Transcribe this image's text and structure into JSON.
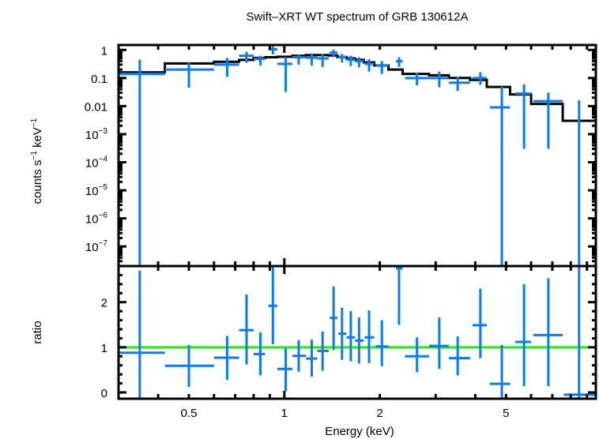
{
  "chart_data": {
    "type": "scatter",
    "title": "Swift–XRT WT spectrum of GRB 130612A",
    "xlabel": "Energy (keV)",
    "xscale": "log",
    "xlim": [
      0.3,
      9.6
    ],
    "x_tick_labels": [
      "0.5",
      "1",
      "2",
      "5"
    ],
    "x_ticks": [
      0.5,
      1,
      2,
      5
    ],
    "colors": {
      "data": "#0a7cf0",
      "model": "#000000",
      "ratio_line": "#22ee11",
      "axes": "#000000"
    },
    "panels": [
      {
        "name": "spectrum",
        "ylabel": "counts s⁻¹ keV⁻¹",
        "ylabel_parts": {
          "a": "counts s",
          "b": "−1",
          "c": " keV",
          "d": "−1"
        },
        "yscale": "log",
        "ylim": [
          2e-08,
          1.5
        ],
        "y_ticks": [
          {
            "value": 1,
            "base": "1",
            "exp": ""
          },
          {
            "value": 0.1,
            "base": "0.1",
            "exp": ""
          },
          {
            "value": 0.01,
            "base": "0.01",
            "exp": ""
          },
          {
            "value": 0.001,
            "base": "10",
            "exp": "−3"
          },
          {
            "value": 0.0001,
            "base": "10",
            "exp": "−4"
          },
          {
            "value": 1e-05,
            "base": "10",
            "exp": "−5"
          },
          {
            "value": 1e-06,
            "base": "10",
            "exp": "−6"
          },
          {
            "value": 1e-07,
            "base": "10",
            "exp": "−7"
          }
        ],
        "series": [
          {
            "name": "data",
            "points": [
              {
                "x": 0.35,
                "xlo": 0.3,
                "xhi": 0.42,
                "y": 0.14,
                "ylo": 2e-08,
                "yhi": 0.45
              },
              {
                "x": 0.5,
                "xlo": 0.42,
                "xhi": 0.6,
                "y": 0.2,
                "ylo": 0.045,
                "yhi": 0.35
              },
              {
                "x": 0.66,
                "xlo": 0.6,
                "xhi": 0.72,
                "y": 0.3,
                "ylo": 0.11,
                "yhi": 0.52
              },
              {
                "x": 0.76,
                "xlo": 0.72,
                "xhi": 0.8,
                "y": 0.62,
                "ylo": 0.35,
                "yhi": 0.85
              },
              {
                "x": 0.84,
                "xlo": 0.8,
                "xhi": 0.87,
                "y": 0.48,
                "ylo": 0.28,
                "yhi": 0.62
              },
              {
                "x": 0.92,
                "xlo": 0.89,
                "xhi": 0.95,
                "y": 1.05,
                "ylo": 0.7,
                "yhi": 1.35
              },
              {
                "x": 1.01,
                "xlo": 0.95,
                "xhi": 1.06,
                "y": 0.32,
                "ylo": 0.032,
                "yhi": 0.55
              },
              {
                "x": 1.11,
                "xlo": 1.06,
                "xhi": 1.17,
                "y": 0.55,
                "ylo": 0.3,
                "yhi": 0.7
              },
              {
                "x": 1.22,
                "xlo": 1.17,
                "xhi": 1.27,
                "y": 0.53,
                "ylo": 0.28,
                "yhi": 0.75
              },
              {
                "x": 1.32,
                "xlo": 1.27,
                "xhi": 1.38,
                "y": 0.5,
                "ylo": 0.25,
                "yhi": 0.72
              },
              {
                "x": 1.43,
                "xlo": 1.39,
                "xhi": 1.47,
                "y": 0.8,
                "ylo": 0.55,
                "yhi": 1.05
              },
              {
                "x": 1.52,
                "xlo": 1.48,
                "xhi": 1.57,
                "y": 0.55,
                "ylo": 0.36,
                "yhi": 0.72
              },
              {
                "x": 1.62,
                "xlo": 1.57,
                "xhi": 1.67,
                "y": 0.45,
                "ylo": 0.27,
                "yhi": 0.62
              },
              {
                "x": 1.72,
                "xlo": 1.67,
                "xhi": 1.78,
                "y": 0.4,
                "ylo": 0.24,
                "yhi": 0.55
              },
              {
                "x": 1.85,
                "xlo": 1.79,
                "xhi": 1.92,
                "y": 0.32,
                "ylo": 0.17,
                "yhi": 0.47
              },
              {
                "x": 2.03,
                "xlo": 1.94,
                "xhi": 2.13,
                "y": 0.28,
                "ylo": 0.14,
                "yhi": 0.4
              },
              {
                "x": 2.3,
                "xlo": 2.25,
                "xhi": 2.36,
                "y": 0.4,
                "ylo": 0.25,
                "yhi": 0.55
              },
              {
                "x": 2.62,
                "xlo": 2.4,
                "xhi": 2.86,
                "y": 0.1,
                "ylo": 0.055,
                "yhi": 0.155
              },
              {
                "x": 3.08,
                "xlo": 2.86,
                "xhi": 3.3,
                "y": 0.1,
                "ylo": 0.047,
                "yhi": 0.17
              },
              {
                "x": 3.52,
                "xlo": 3.3,
                "xhi": 3.85,
                "y": 0.068,
                "ylo": 0.035,
                "yhi": 0.11
              },
              {
                "x": 4.15,
                "xlo": 3.92,
                "xhi": 4.35,
                "y": 0.1,
                "ylo": 0.057,
                "yhi": 0.16
              },
              {
                "x": 4.85,
                "xlo": 4.45,
                "xhi": 5.15,
                "y": 0.009,
                "ylo": 2e-08,
                "yhi": 0.05
              },
              {
                "x": 5.7,
                "xlo": 5.35,
                "xhi": 6.0,
                "y": 0.028,
                "ylo": 0.0003,
                "yhi": 0.06
              },
              {
                "x": 6.8,
                "xlo": 6.1,
                "xhi": 7.55,
                "y": 0.015,
                "ylo": 0.0003,
                "yhi": 0.03
              },
              {
                "x": 8.5,
                "xlo": 7.6,
                "xhi": 9.6,
                "y": 2e-08,
                "ylo": 2e-08,
                "yhi": 0.016
              }
            ]
          },
          {
            "name": "model",
            "step_edges": [
              0.3,
              0.42,
              0.6,
              0.72,
              0.8,
              0.87,
              0.95,
              1.06,
              1.17,
              1.27,
              1.38,
              1.47,
              1.57,
              1.67,
              1.78,
              1.92,
              2.13,
              2.36,
              2.86,
              3.3,
              3.85,
              4.35,
              5.15,
              6.0,
              7.55,
              9.6
            ],
            "step_values": [
              0.16,
              0.33,
              0.38,
              0.44,
              0.52,
              0.55,
              0.57,
              0.62,
              0.66,
              0.66,
              0.64,
              0.56,
              0.5,
              0.44,
              0.36,
              0.28,
              0.2,
              0.14,
              0.125,
              0.1,
              0.085,
              0.048,
              0.026,
              0.012,
              0.003
            ]
          }
        ]
      },
      {
        "name": "ratio",
        "ylabel": "ratio",
        "yscale": "linear",
        "ylim": [
          -0.14,
          2.8
        ],
        "y_ticks": [
          {
            "value": 0,
            "base": "0",
            "exp": ""
          },
          {
            "value": 1,
            "base": "1",
            "exp": ""
          },
          {
            "value": 2,
            "base": "2",
            "exp": ""
          }
        ],
        "reference_line": 1.0,
        "series": [
          {
            "name": "ratio-data",
            "points": [
              {
                "x": 0.35,
                "xlo": 0.3,
                "xhi": 0.42,
                "y": 0.88,
                "ylo": -0.14,
                "yhi": 2.7
              },
              {
                "x": 0.5,
                "xlo": 0.42,
                "xhi": 0.6,
                "y": 0.59,
                "ylo": 0.12,
                "yhi": 1.05
              },
              {
                "x": 0.66,
                "xlo": 0.6,
                "xhi": 0.72,
                "y": 0.77,
                "ylo": 0.28,
                "yhi": 1.25
              },
              {
                "x": 0.76,
                "xlo": 0.72,
                "xhi": 0.8,
                "y": 1.38,
                "ylo": 0.62,
                "yhi": 2.17
              },
              {
                "x": 0.84,
                "xlo": 0.8,
                "xhi": 0.87,
                "y": 0.85,
                "ylo": 0.38,
                "yhi": 1.33
              },
              {
                "x": 0.92,
                "xlo": 0.89,
                "xhi": 0.95,
                "y": 1.92,
                "ylo": 1.07,
                "yhi": 2.77
              },
              {
                "x": 1.01,
                "xlo": 0.95,
                "xhi": 1.06,
                "y": 0.52,
                "ylo": 0.03,
                "yhi": 0.98
              },
              {
                "x": 1.11,
                "xlo": 1.06,
                "xhi": 1.17,
                "y": 0.81,
                "ylo": 0.46,
                "yhi": 1.16
              },
              {
                "x": 1.22,
                "xlo": 1.17,
                "xhi": 1.27,
                "y": 0.75,
                "ylo": 0.35,
                "yhi": 1.17
              },
              {
                "x": 1.32,
                "xlo": 1.27,
                "xhi": 1.38,
                "y": 0.92,
                "ylo": 0.48,
                "yhi": 1.35
              },
              {
                "x": 1.43,
                "xlo": 1.39,
                "xhi": 1.47,
                "y": 1.65,
                "ylo": 0.94,
                "yhi": 2.35
              },
              {
                "x": 1.52,
                "xlo": 1.48,
                "xhi": 1.57,
                "y": 1.3,
                "ylo": 0.72,
                "yhi": 1.88
              },
              {
                "x": 1.62,
                "xlo": 1.57,
                "xhi": 1.67,
                "y": 1.22,
                "ylo": 0.69,
                "yhi": 1.8
              },
              {
                "x": 1.72,
                "xlo": 1.67,
                "xhi": 1.78,
                "y": 1.15,
                "ylo": 0.64,
                "yhi": 1.66
              },
              {
                "x": 1.85,
                "xlo": 1.79,
                "xhi": 1.92,
                "y": 1.22,
                "ylo": 0.65,
                "yhi": 1.82
              },
              {
                "x": 2.03,
                "xlo": 1.94,
                "xhi": 2.13,
                "y": 1.02,
                "ylo": 0.58,
                "yhi": 1.6
              },
              {
                "x": 2.3,
                "xlo": 2.25,
                "xhi": 2.36,
                "y": 2.75,
                "ylo": 1.5,
                "yhi": 2.8
              },
              {
                "x": 2.62,
                "xlo": 2.4,
                "xhi": 2.86,
                "y": 0.8,
                "ylo": 0.45,
                "yhi": 1.22
              },
              {
                "x": 3.08,
                "xlo": 2.86,
                "xhi": 3.3,
                "y": 1.03,
                "ylo": 0.52,
                "yhi": 1.66
              },
              {
                "x": 3.52,
                "xlo": 3.3,
                "xhi": 3.85,
                "y": 0.76,
                "ylo": 0.38,
                "yhi": 1.24
              },
              {
                "x": 4.15,
                "xlo": 3.92,
                "xhi": 4.35,
                "y": 1.49,
                "ylo": 0.76,
                "yhi": 2.3
              },
              {
                "x": 4.85,
                "xlo": 4.45,
                "xhi": 5.15,
                "y": 0.19,
                "ylo": -0.14,
                "yhi": 1.05
              },
              {
                "x": 5.7,
                "xlo": 5.35,
                "xhi": 6.0,
                "y": 1.12,
                "ylo": 0.14,
                "yhi": 2.4
              },
              {
                "x": 6.8,
                "xlo": 6.1,
                "xhi": 7.55,
                "y": 1.27,
                "ylo": 0.14,
                "yhi": 2.53
              },
              {
                "x": 8.5,
                "xlo": 7.6,
                "xhi": 9.6,
                "y": -0.05,
                "ylo": -0.14,
                "yhi": 2.8
              }
            ]
          }
        ]
      }
    ]
  }
}
